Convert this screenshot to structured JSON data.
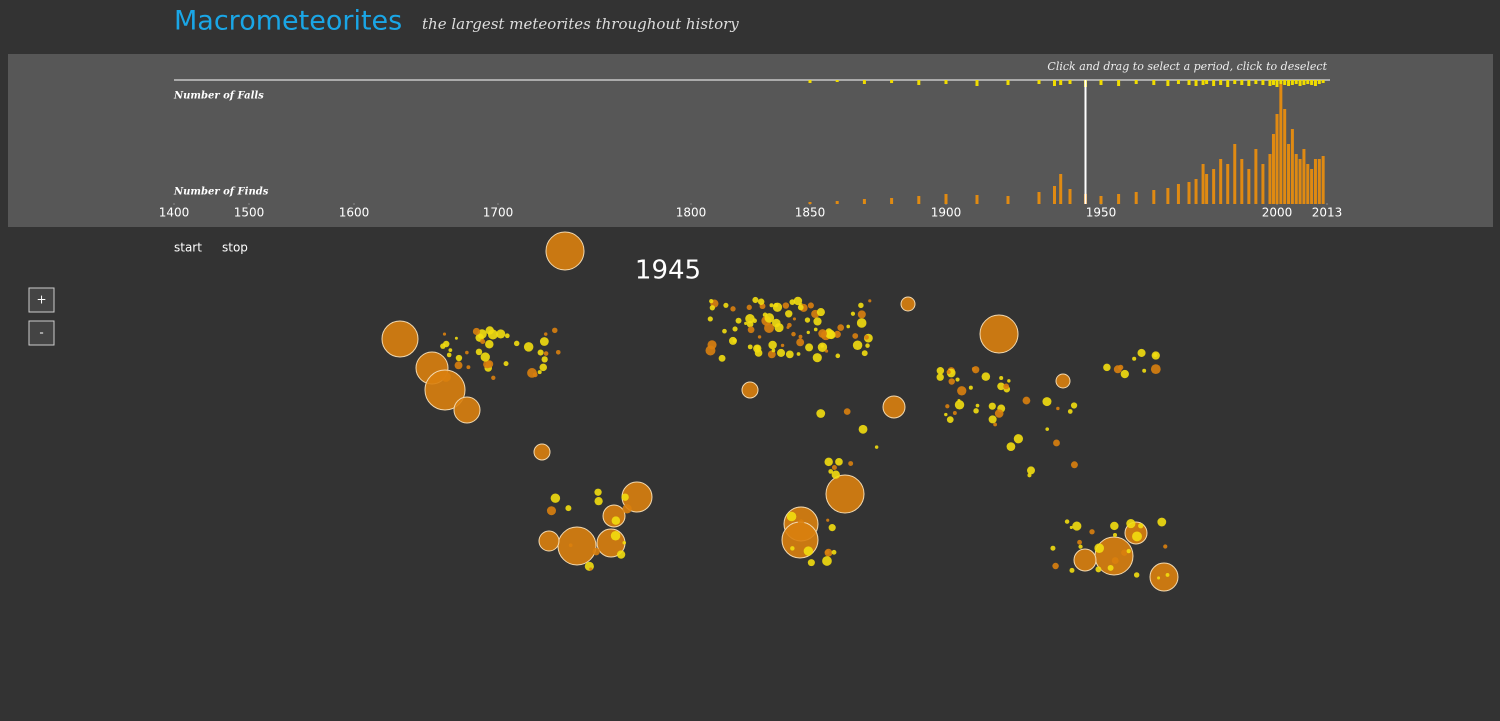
{
  "chart_data": {
    "type": "bar",
    "title": "Macrometeorites",
    "subtitle": "the largest meteorites throughout history",
    "instruction": "Click and drag to select a period, click to deselect",
    "falls_label": "Number of Falls",
    "finds_label": "Number of Finds",
    "controls": [
      "start",
      "stop"
    ],
    "zoom": [
      "+",
      "-"
    ],
    "selected_year": 1945,
    "xlim": [
      1400,
      2013
    ],
    "xticks": [
      1400,
      1500,
      1600,
      1700,
      1800,
      1850,
      1900,
      1950,
      2000,
      2013
    ],
    "ylim": [
      0,
      120
    ],
    "x": [
      1850,
      1860,
      1870,
      1880,
      1890,
      1900,
      1910,
      1920,
      1930,
      1935,
      1937,
      1940,
      1945,
      1950,
      1955,
      1960,
      1965,
      1969,
      1972,
      1975,
      1977,
      1979,
      1980,
      1982,
      1984,
      1986,
      1988,
      1990,
      1992,
      1994,
      1996,
      1998,
      1999,
      2000,
      2001,
      2002,
      2003,
      2004,
      2005,
      2006,
      2007,
      2008,
      2009,
      2010,
      2011,
      2012
    ],
    "series": [
      {
        "name": "Number of Finds",
        "color": "#e08a12",
        "values": [
          2,
          3,
          5,
          6,
          8,
          10,
          9,
          8,
          12,
          18,
          30,
          15,
          10,
          8,
          10,
          12,
          14,
          16,
          20,
          22,
          25,
          40,
          30,
          35,
          45,
          40,
          60,
          45,
          35,
          55,
          40,
          50,
          70,
          90,
          120,
          95,
          60,
          75,
          50,
          45,
          55,
          40,
          35,
          45,
          45,
          48
        ]
      },
      {
        "name": "Number of Falls",
        "color": "#f0dc00",
        "values": [
          3,
          2,
          4,
          3,
          5,
          4,
          6,
          5,
          4,
          6,
          5,
          4,
          7,
          5,
          6,
          4,
          5,
          6,
          4,
          5,
          6,
          5,
          4,
          6,
          5,
          7,
          4,
          5,
          6,
          4,
          5,
          6,
          5,
          7,
          4,
          5,
          6,
          5,
          4,
          6,
          5,
          4,
          5,
          6,
          4,
          3
        ]
      }
    ]
  }
}
